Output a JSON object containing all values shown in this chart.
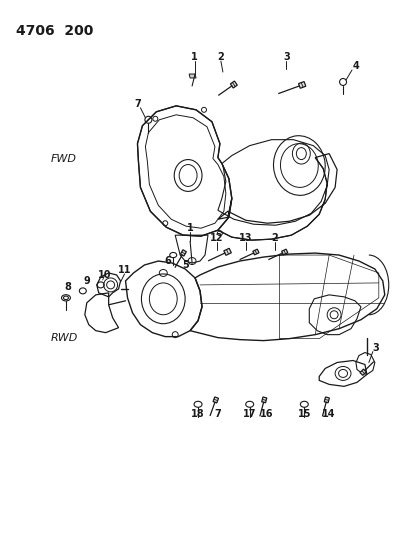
{
  "title_code": "4706  200",
  "bg": "#ffffff",
  "lc": "#1a1a1a",
  "fwd_label": "FWD",
  "rwd_label": "RWD",
  "title_fontsize": 10,
  "label_fontsize": 7,
  "part_fontsize": 7
}
